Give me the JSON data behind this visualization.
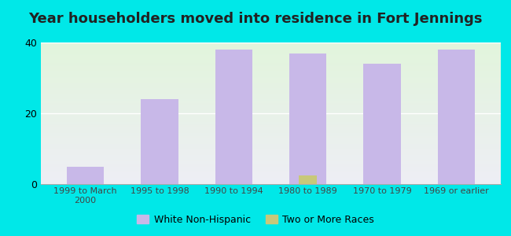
{
  "title": "Year householders moved into residence in Fort Jennings",
  "categories": [
    "1999 to March\n2000",
    "1995 to 1998",
    "1990 to 1994",
    "1980 to 1989",
    "1970 to 1979",
    "1969 or earlier"
  ],
  "white_non_hispanic": [
    5,
    24,
    38,
    37,
    34,
    38
  ],
  "two_or_more_races": [
    0,
    0,
    0,
    2.5,
    0,
    0
  ],
  "bar_color_white": "#c8b8e8",
  "bar_color_two": "#c8c87a",
  "background_outer": "#00e8e8",
  "background_plot_top": "#e2f5dc",
  "background_plot_bottom": "#eeeef5",
  "ylim_max": 40,
  "yticks": [
    0,
    20,
    40
  ],
  "title_fontsize": 13,
  "legend_labels": [
    "White Non-Hispanic",
    "Two or More Races"
  ],
  "bar_width": 0.5,
  "legend_marker_size": 10
}
